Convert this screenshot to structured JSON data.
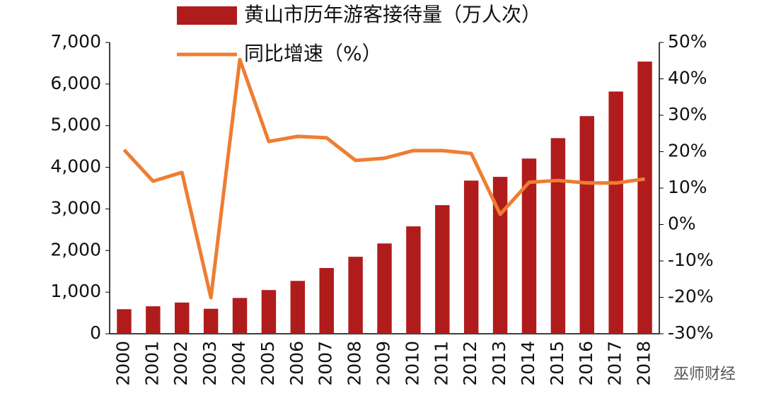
{
  "chart_data": {
    "type": "bar",
    "categories": [
      "2000",
      "2001",
      "2002",
      "2003",
      "2004",
      "2005",
      "2006",
      "2007",
      "2008",
      "2009",
      "2010",
      "2011",
      "2012",
      "2013",
      "2014",
      "2015",
      "2016",
      "2017",
      "2018"
    ],
    "series": [
      {
        "name": "黄山市历年游客接待量（万人次）",
        "type": "bar",
        "color": "#b01c1c",
        "values": [
          590,
          660,
          750,
          600,
          860,
          1050,
          1270,
          1580,
          1850,
          2170,
          2580,
          3090,
          3680,
          3770,
          4210,
          4700,
          5230,
          5820,
          6540
        ]
      },
      {
        "name": "同比增速（%）",
        "type": "line",
        "axis": "y2",
        "color": "#ee7d31",
        "values": [
          20.5,
          11.9,
          14.3,
          -20.1,
          45.3,
          22.8,
          24.2,
          23.8,
          17.6,
          18.2,
          20.3,
          20.3,
          19.5,
          2.8,
          11.6,
          12.1,
          11.4,
          11.4,
          12.5
        ]
      }
    ],
    "ylim": [
      0,
      7000
    ],
    "yticks": [
      0,
      {
        "value": 1000,
        "label": "1,000"
      },
      {
        "value": 2000,
        "label": "2,000"
      },
      {
        "value": 3000,
        "label": "3,000"
      },
      {
        "value": 4000,
        "label": "4,000"
      },
      {
        "value": 5000,
        "label": "5,000"
      },
      {
        "value": 6000,
        "label": "6,000"
      },
      {
        "value": 7000,
        "label": "7,000"
      }
    ],
    "y2lim": [
      -30,
      50
    ],
    "y2ticks": [
      {
        "value": -30,
        "label": "-30%"
      },
      {
        "value": -20,
        "label": "-20%"
      },
      {
        "value": -10,
        "label": "-10%"
      },
      {
        "value": 0,
        "label": "0%"
      },
      {
        "value": 10,
        "label": "10%"
      },
      {
        "value": 20,
        "label": "20%"
      },
      {
        "value": 30,
        "label": "30%"
      },
      {
        "value": 40,
        "label": "40%"
      },
      {
        "value": 50,
        "label": "50%"
      }
    ],
    "watermark": "巫师财经"
  }
}
